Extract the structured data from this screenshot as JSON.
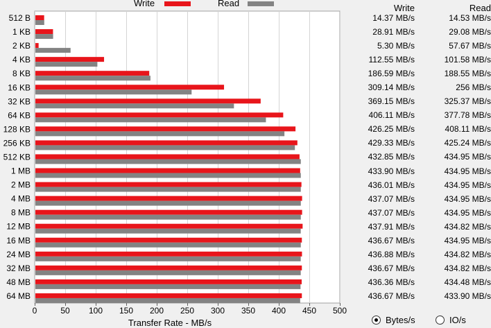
{
  "legend": {
    "write_label": "Write",
    "read_label": "Read",
    "write_color": "#e8151b",
    "read_color": "#838383"
  },
  "table": {
    "write_header": "Write",
    "read_header": "Read"
  },
  "units": {
    "bytes_label": "Bytes/s",
    "io_label": "IO/s",
    "selected": "Bytes/s"
  },
  "chart_data": {
    "type": "bar",
    "orientation": "horizontal",
    "xlabel": "Transfer Rate - MB/s",
    "xlim": [
      0,
      500
    ],
    "xticks": [
      0,
      50,
      100,
      150,
      200,
      250,
      300,
      350,
      400,
      450,
      500
    ],
    "categories": [
      "512 B",
      "1 KB",
      "2 KB",
      "4 KB",
      "8 KB",
      "16 KB",
      "32 KB",
      "64 KB",
      "128 KB",
      "256 KB",
      "512 KB",
      "1 MB",
      "2 MB",
      "4 MB",
      "8 MB",
      "12 MB",
      "16 MB",
      "24 MB",
      "32 MB",
      "48 MB",
      "64 MB"
    ],
    "series": [
      {
        "name": "Write",
        "color": "#e8151b",
        "values": [
          14.37,
          28.91,
          5.3,
          112.55,
          186.59,
          309.14,
          369.15,
          406.11,
          426.25,
          429.33,
          432.85,
          433.9,
          436.01,
          437.07,
          437.07,
          437.91,
          436.67,
          436.88,
          436.67,
          436.36,
          436.67
        ]
      },
      {
        "name": "Read",
        "color": "#838383",
        "values": [
          14.53,
          29.08,
          57.67,
          101.58,
          188.55,
          256,
          325.37,
          377.78,
          408.11,
          425.24,
          434.95,
          434.95,
          434.95,
          434.95,
          434.95,
          434.82,
          434.95,
          434.82,
          434.82,
          434.48,
          433.9
        ]
      }
    ],
    "value_labels": {
      "write": [
        "14.37 MB/s",
        "28.91 MB/s",
        "5.30 MB/s",
        "112.55 MB/s",
        "186.59 MB/s",
        "309.14 MB/s",
        "369.15 MB/s",
        "406.11 MB/s",
        "426.25 MB/s",
        "429.33 MB/s",
        "432.85 MB/s",
        "433.90 MB/s",
        "436.01 MB/s",
        "437.07 MB/s",
        "437.07 MB/s",
        "437.91 MB/s",
        "436.67 MB/s",
        "436.88 MB/s",
        "436.67 MB/s",
        "436.36 MB/s",
        "436.67 MB/s"
      ],
      "read": [
        "14.53 MB/s",
        "29.08 MB/s",
        "57.67 MB/s",
        "101.58 MB/s",
        "188.55 MB/s",
        "256 MB/s",
        "325.37 MB/s",
        "377.78 MB/s",
        "408.11 MB/s",
        "425.24 MB/s",
        "434.95 MB/s",
        "434.95 MB/s",
        "434.95 MB/s",
        "434.95 MB/s",
        "434.95 MB/s",
        "434.82 MB/s",
        "434.95 MB/s",
        "434.82 MB/s",
        "434.82 MB/s",
        "434.48 MB/s",
        "433.90 MB/s"
      ]
    }
  }
}
